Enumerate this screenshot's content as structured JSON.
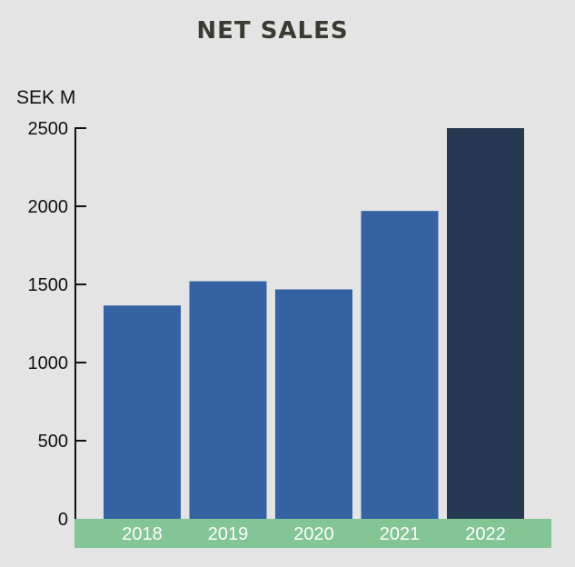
{
  "chart_data": {
    "type": "bar",
    "title": "NET SALES",
    "ylabel": "SEK M",
    "xlabel": "",
    "categories": [
      "2018",
      "2019",
      "2020",
      "2021",
      "2022"
    ],
    "values": [
      1365,
      1520,
      1468,
      1970,
      2500
    ],
    "ylim": [
      0,
      2500
    ],
    "yticks": [
      0,
      500,
      1000,
      1500,
      2000,
      2500
    ],
    "grid": false,
    "colors": {
      "bar": "#3562a3",
      "highlight_bar": "#243951",
      "category_band": "#84c595",
      "background": "#e4e4e4"
    },
    "highlight_category": "2022"
  }
}
